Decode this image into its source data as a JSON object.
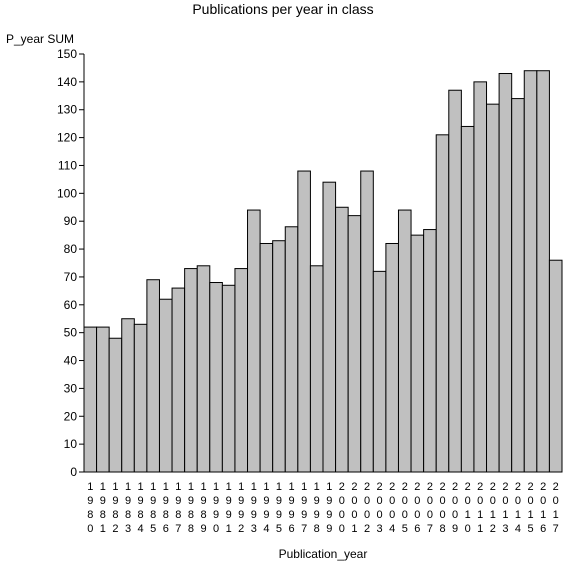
{
  "chart_data": {
    "type": "bar",
    "title": "Publications per year in class",
    "ylabel": "P_year SUM",
    "xlabel": "Publication_year",
    "ylim": [
      0,
      150
    ],
    "yticks": [
      0,
      10,
      20,
      30,
      40,
      50,
      60,
      70,
      80,
      90,
      100,
      110,
      120,
      130,
      140,
      150
    ],
    "grid": false,
    "bar_color": "#c0c0c0",
    "categories": [
      "1980",
      "1981",
      "1982",
      "1983",
      "1984",
      "1985",
      "1986",
      "1987",
      "1988",
      "1989",
      "1990",
      "1991",
      "1992",
      "1993",
      "1994",
      "1995",
      "1996",
      "1997",
      "1998",
      "1999",
      "2000",
      "2001",
      "2002",
      "2003",
      "2004",
      "2005",
      "2006",
      "2007",
      "2008",
      "2009",
      "2010",
      "2011",
      "2012",
      "2013",
      "2014",
      "2015",
      "2016",
      "2017"
    ],
    "values": [
      52,
      52,
      48,
      55,
      53,
      69,
      62,
      66,
      73,
      74,
      68,
      67,
      73,
      94,
      82,
      83,
      88,
      108,
      74,
      104,
      95,
      92,
      108,
      72,
      82,
      94,
      85,
      87,
      121,
      137,
      124,
      140,
      132,
      143,
      134,
      144,
      144,
      76
    ]
  }
}
